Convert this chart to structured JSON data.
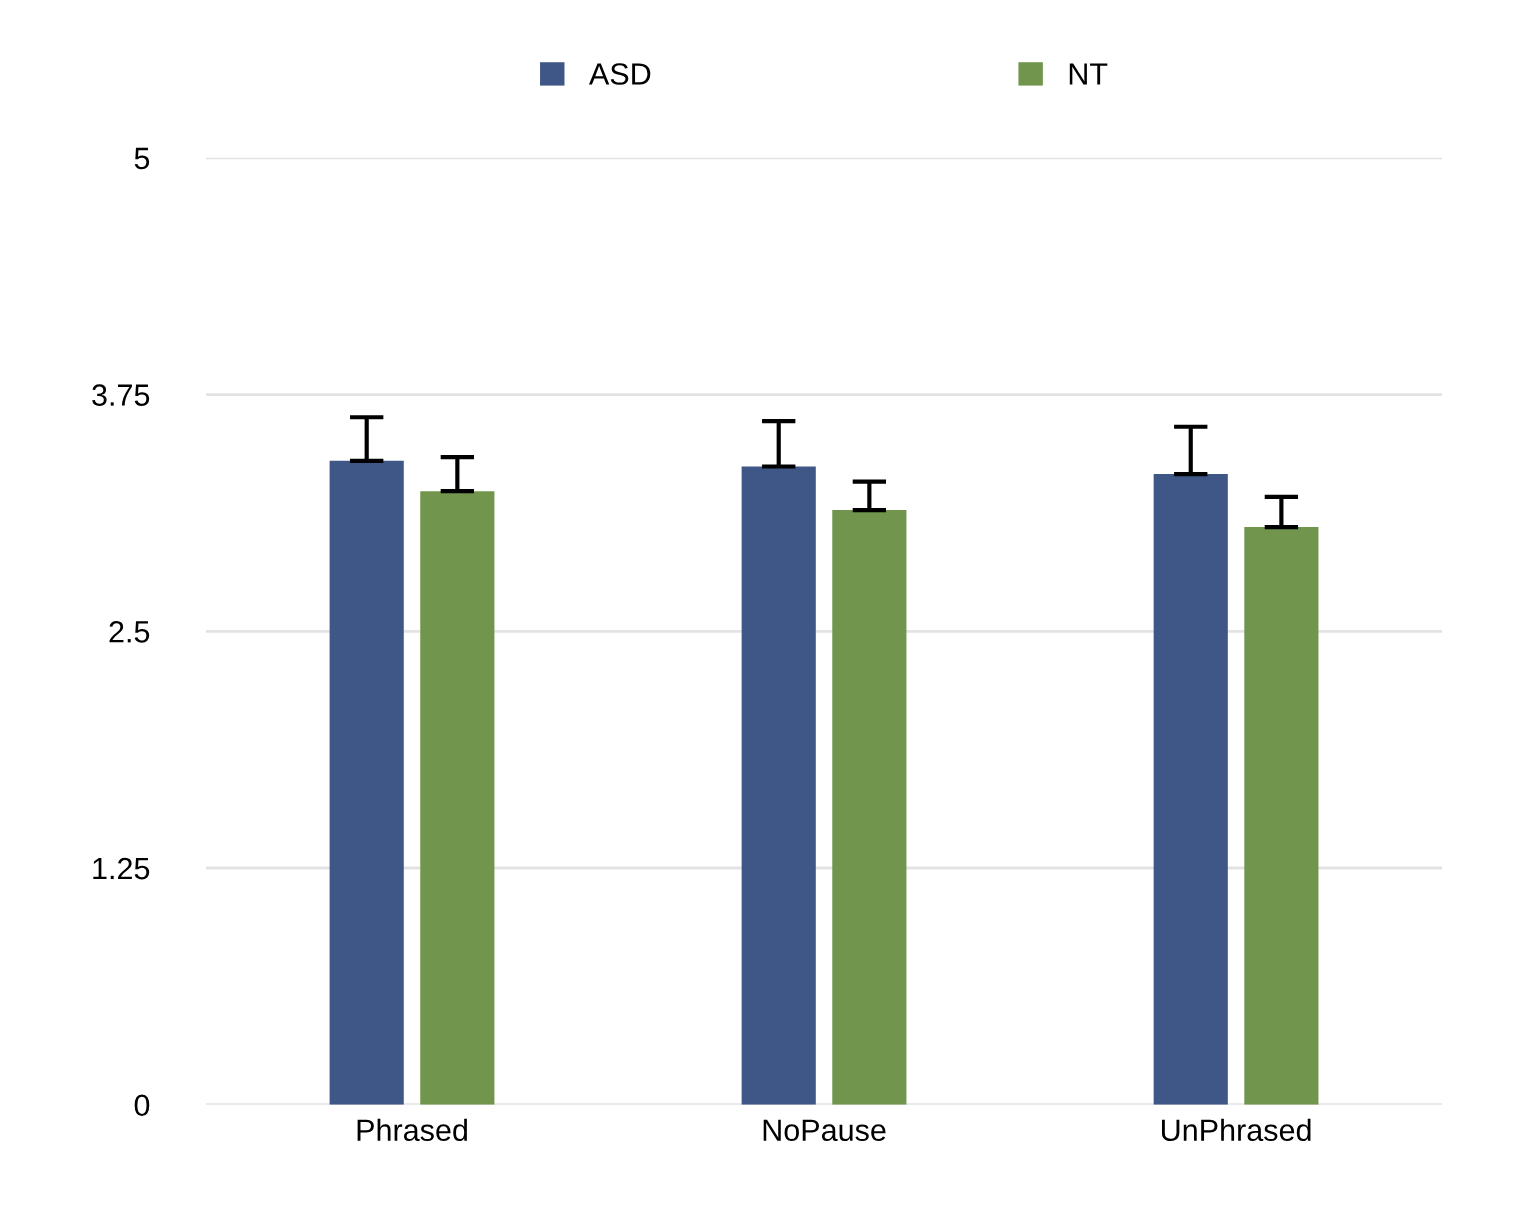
{
  "chart_data": {
    "type": "bar",
    "categories": [
      "Phrased",
      "NoPause",
      "UnPhrased"
    ],
    "series": [
      {
        "name": "ASD",
        "color": "#3f5787",
        "values": [
          3.4,
          3.37,
          3.33
        ],
        "errors": [
          [
            3.4,
            3.63
          ],
          [
            3.37,
            3.61
          ],
          [
            3.33,
            3.58
          ]
        ]
      },
      {
        "name": "NT",
        "color": "#71954d",
        "values": [
          3.24,
          3.14,
          3.05
        ],
        "errors": [
          [
            3.24,
            3.42
          ],
          [
            3.14,
            3.29
          ],
          [
            3.05,
            3.21
          ]
        ]
      }
    ],
    "ylim": [
      0,
      5
    ],
    "yticks": [
      0,
      1.25,
      2.5,
      3.75,
      5
    ],
    "grid": "y",
    "legend": "top"
  }
}
